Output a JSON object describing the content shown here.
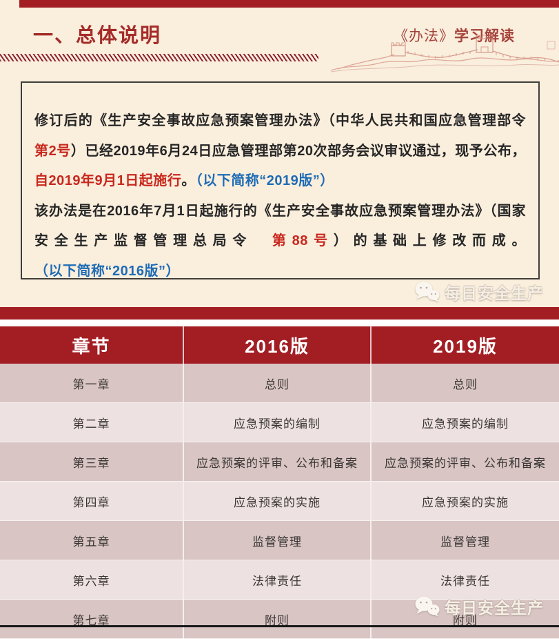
{
  "header": {
    "title": "一、总体说明",
    "subtitle_prefix": "《办法》",
    "subtitle_rest": "学习解读"
  },
  "intro": {
    "p1": [
      {
        "style": "normal",
        "text": "修订后的《生产安全事故应急预案管理办法》（中华人民共和国应急管理部令　"
      },
      {
        "style": "red",
        "text": "第2号"
      },
      {
        "style": "normal",
        "text": "）已经2019年6月24日应急管理部第20次部务会议审议通过，现予公布，"
      },
      {
        "style": "red",
        "text": "自2019年9月1日起施行"
      },
      {
        "style": "normal",
        "text": "。"
      },
      {
        "style": "blue",
        "text": "（以下简称“2019版”）"
      }
    ],
    "p2": [
      {
        "style": "normal",
        "text": "该办法是在2016年7月1日起施行的《生产安全事故应急预案管理办法》（国家安全生产监督管理总局令　"
      },
      {
        "style": "red",
        "text": "第88号"
      },
      {
        "style": "normal",
        "text": "）的基础上修改而成。"
      },
      {
        "style": "blue",
        "text": "（以下简称“2016版”）"
      }
    ]
  },
  "watermark": {
    "label": "每日安全生产"
  },
  "table": {
    "headers": [
      "章节",
      "2016版",
      "2019版"
    ],
    "rows": [
      [
        "第一章",
        "总则",
        "总则"
      ],
      [
        "第二章",
        "应急预案的编制",
        "应急预案的编制"
      ],
      [
        "第三章",
        "应急预案的评审、公布和备案",
        "应急预案的评审、公布和备案"
      ],
      [
        "第四章",
        "应急预案的实施",
        "应急预案的实施"
      ],
      [
        "第五章",
        "监督管理",
        "监督管理"
      ],
      [
        "第六章",
        "法律责任",
        "法律责任"
      ],
      [
        "第七章",
        "附则",
        "附则"
      ]
    ]
  },
  "colors": {
    "accent_red": "#a31e23",
    "title_red": "#a42c28",
    "text_red": "#c8281d",
    "text_blue": "#1e6cb5",
    "row_dark": "#d8c5c4",
    "row_light": "#ede2e1",
    "page_bg": "#faeedd"
  }
}
